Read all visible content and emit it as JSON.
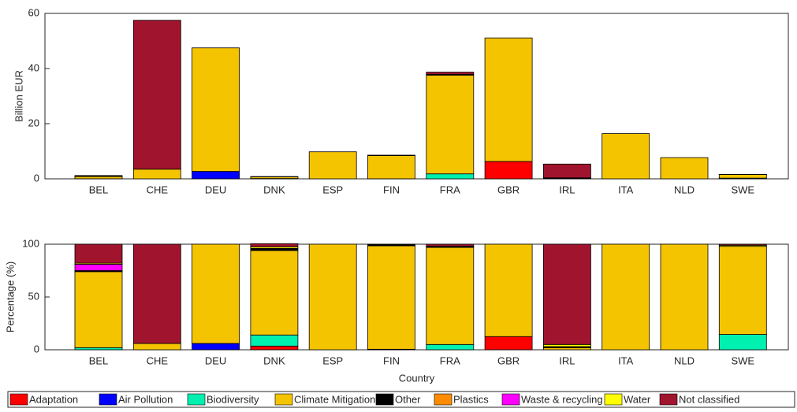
{
  "chart_data": [
    {
      "type": "bar",
      "y_label": "Billion EUR",
      "categories": [
        "BEL",
        "CHE",
        "DEU",
        "DNK",
        "ESP",
        "FIN",
        "FRA",
        "GBR",
        "IRL",
        "ITA",
        "NLD",
        "SWE"
      ],
      "ylim": [
        0,
        60
      ],
      "yticks": [
        0,
        20,
        40,
        60
      ],
      "series": [
        {
          "color": "#ff0000",
          "values": [
            0,
            0,
            0,
            0.03,
            0,
            0,
            0,
            6.3,
            0,
            0,
            0,
            0
          ]
        },
        {
          "color": "#0000ff",
          "values": [
            0,
            0,
            2.7,
            0,
            0,
            0,
            0,
            0,
            0,
            0,
            0,
            0
          ]
        },
        {
          "color": "#00f0b0",
          "values": [
            0.02,
            0,
            0,
            0.08,
            0,
            0.02,
            1.8,
            0,
            0,
            0,
            0,
            0.25
          ]
        },
        {
          "color": "#f5c400",
          "values": [
            0.85,
            3.5,
            44.8,
            0.63,
            9.8,
            8.4,
            35.8,
            44.8,
            0.2,
            16.4,
            7.7,
            1.3
          ]
        },
        {
          "color": "#000000",
          "values": [
            0.02,
            0,
            0,
            0.02,
            0,
            0.1,
            0.3,
            0,
            0.05,
            0,
            0,
            0.02
          ]
        },
        {
          "color": "#ff8c00",
          "values": [
            0,
            0,
            0,
            0,
            0,
            0,
            0,
            0,
            0,
            0,
            0,
            0
          ]
        },
        {
          "color": "#ff00ff",
          "values": [
            0.1,
            0,
            0,
            0,
            0,
            0,
            0,
            0,
            0,
            0,
            0,
            0
          ]
        },
        {
          "color": "#ffff00",
          "values": [
            0,
            0,
            0,
            0.01,
            0,
            0,
            0,
            0,
            0.1,
            0,
            0,
            0.02
          ]
        },
        {
          "color": "#a0142e",
          "values": [
            0.2,
            54,
            0,
            0.04,
            0,
            0.05,
            0.8,
            0,
            5,
            0,
            0,
            0.02
          ]
        }
      ]
    },
    {
      "type": "bar",
      "y_label": "Percentage (%)",
      "x_label": "Country",
      "categories": [
        "BEL",
        "CHE",
        "DEU",
        "DNK",
        "ESP",
        "FIN",
        "FRA",
        "GBR",
        "IRL",
        "ITA",
        "NLD",
        "SWE"
      ],
      "ylim": [
        0,
        100
      ],
      "yticks": [
        0,
        50,
        100
      ],
      "series": [
        {
          "name": "Adaptation",
          "color": "#ff0000",
          "values": [
            0,
            0,
            0,
            3.5,
            0,
            0,
            0,
            12.5,
            0,
            0,
            0,
            0
          ]
        },
        {
          "name": "Air Pollution",
          "color": "#0000ff",
          "values": [
            0,
            0,
            6,
            0,
            0,
            0,
            0,
            0,
            0,
            0,
            0,
            0
          ]
        },
        {
          "name": "Biodiversity",
          "color": "#00f0b0",
          "values": [
            2,
            0,
            0,
            10.5,
            0,
            0.5,
            5,
            0,
            0,
            0,
            0,
            14.5
          ]
        },
        {
          "name": "Climate Mitigation",
          "color": "#f5c400",
          "values": [
            72,
            6,
            94,
            80,
            100,
            98,
            92,
            87.5,
            2,
            100,
            100,
            83.5
          ]
        },
        {
          "name": "Other",
          "color": "#000000",
          "values": [
            1,
            0,
            0,
            2,
            0,
            1,
            1,
            0,
            1,
            0,
            0,
            0
          ]
        },
        {
          "name": "Plastics",
          "color": "#ff8c00",
          "values": [
            0,
            0,
            0,
            0,
            0,
            0,
            0,
            0,
            0,
            0,
            0,
            0
          ]
        },
        {
          "name": "Waste & recycling",
          "color": "#ff00ff",
          "values": [
            6,
            0,
            0,
            0,
            0,
            0,
            0,
            0,
            0,
            0,
            0,
            0
          ]
        },
        {
          "name": "Water",
          "color": "#ffff00",
          "values": [
            1,
            0,
            0,
            1.5,
            0,
            0,
            0,
            0,
            2,
            0,
            0,
            1
          ]
        },
        {
          "name": "Not classified",
          "color": "#a0142e",
          "values": [
            18,
            94,
            0,
            3,
            0,
            0.5,
            2,
            0,
            95,
            0,
            0,
            1
          ]
        }
      ]
    }
  ]
}
